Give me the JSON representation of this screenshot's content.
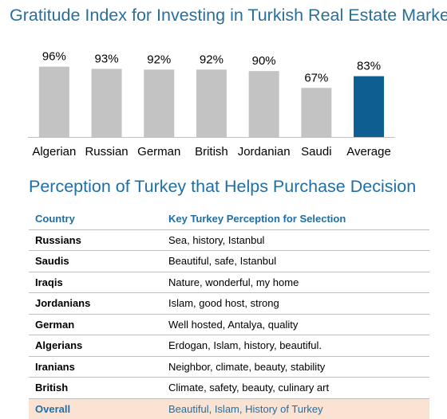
{
  "chart_title": "Gratitude Index for Investing in Turkish Real Estate Market",
  "chart_data": {
    "type": "bar",
    "title": "Gratitude Index for Investing in Turkish Real Estate Market",
    "categories": [
      "Algerian",
      "Russian",
      "German",
      "British",
      "Jordanian",
      "Saudi",
      "Average"
    ],
    "values": [
      96,
      93,
      92,
      92,
      90,
      67,
      83
    ],
    "value_labels": [
      "96%",
      "93%",
      "92%",
      "92%",
      "90%",
      "67%",
      "83%"
    ],
    "unit": "%",
    "ylim": [
      0,
      100
    ],
    "grid": false,
    "colors": {
      "default": "#c3c3c3",
      "highlight": "#0f5e92",
      "highlight_category": "Average"
    }
  },
  "table_title": "Perception of Turkey that Helps Purchase Decision",
  "table": {
    "headers": [
      "Country",
      "Key Turkey Perception for Selection"
    ],
    "rows": [
      [
        "Russians",
        "Sea, history, Istanbul"
      ],
      [
        "Saudis",
        "Beautiful, safe, Istanbul"
      ],
      [
        "Iraqis",
        "Nature, wonderful, my home"
      ],
      [
        "Jordanians",
        "Islam, good host, strong"
      ],
      [
        "German",
        "Well hosted, Antalya, quality"
      ],
      [
        "Algerians",
        "Erdogan, Islam, history, beautiful."
      ],
      [
        "Iranians",
        "Neighbor, climate, beauty, stability"
      ],
      [
        "British",
        "Climate, safety, beauty, culinary art"
      ]
    ],
    "overall": [
      "Overall",
      "Beautiful, Islam, History of Turkey"
    ],
    "colors": {
      "header": "#1f6fa6",
      "overall_bg": "#fbe3d4"
    }
  }
}
